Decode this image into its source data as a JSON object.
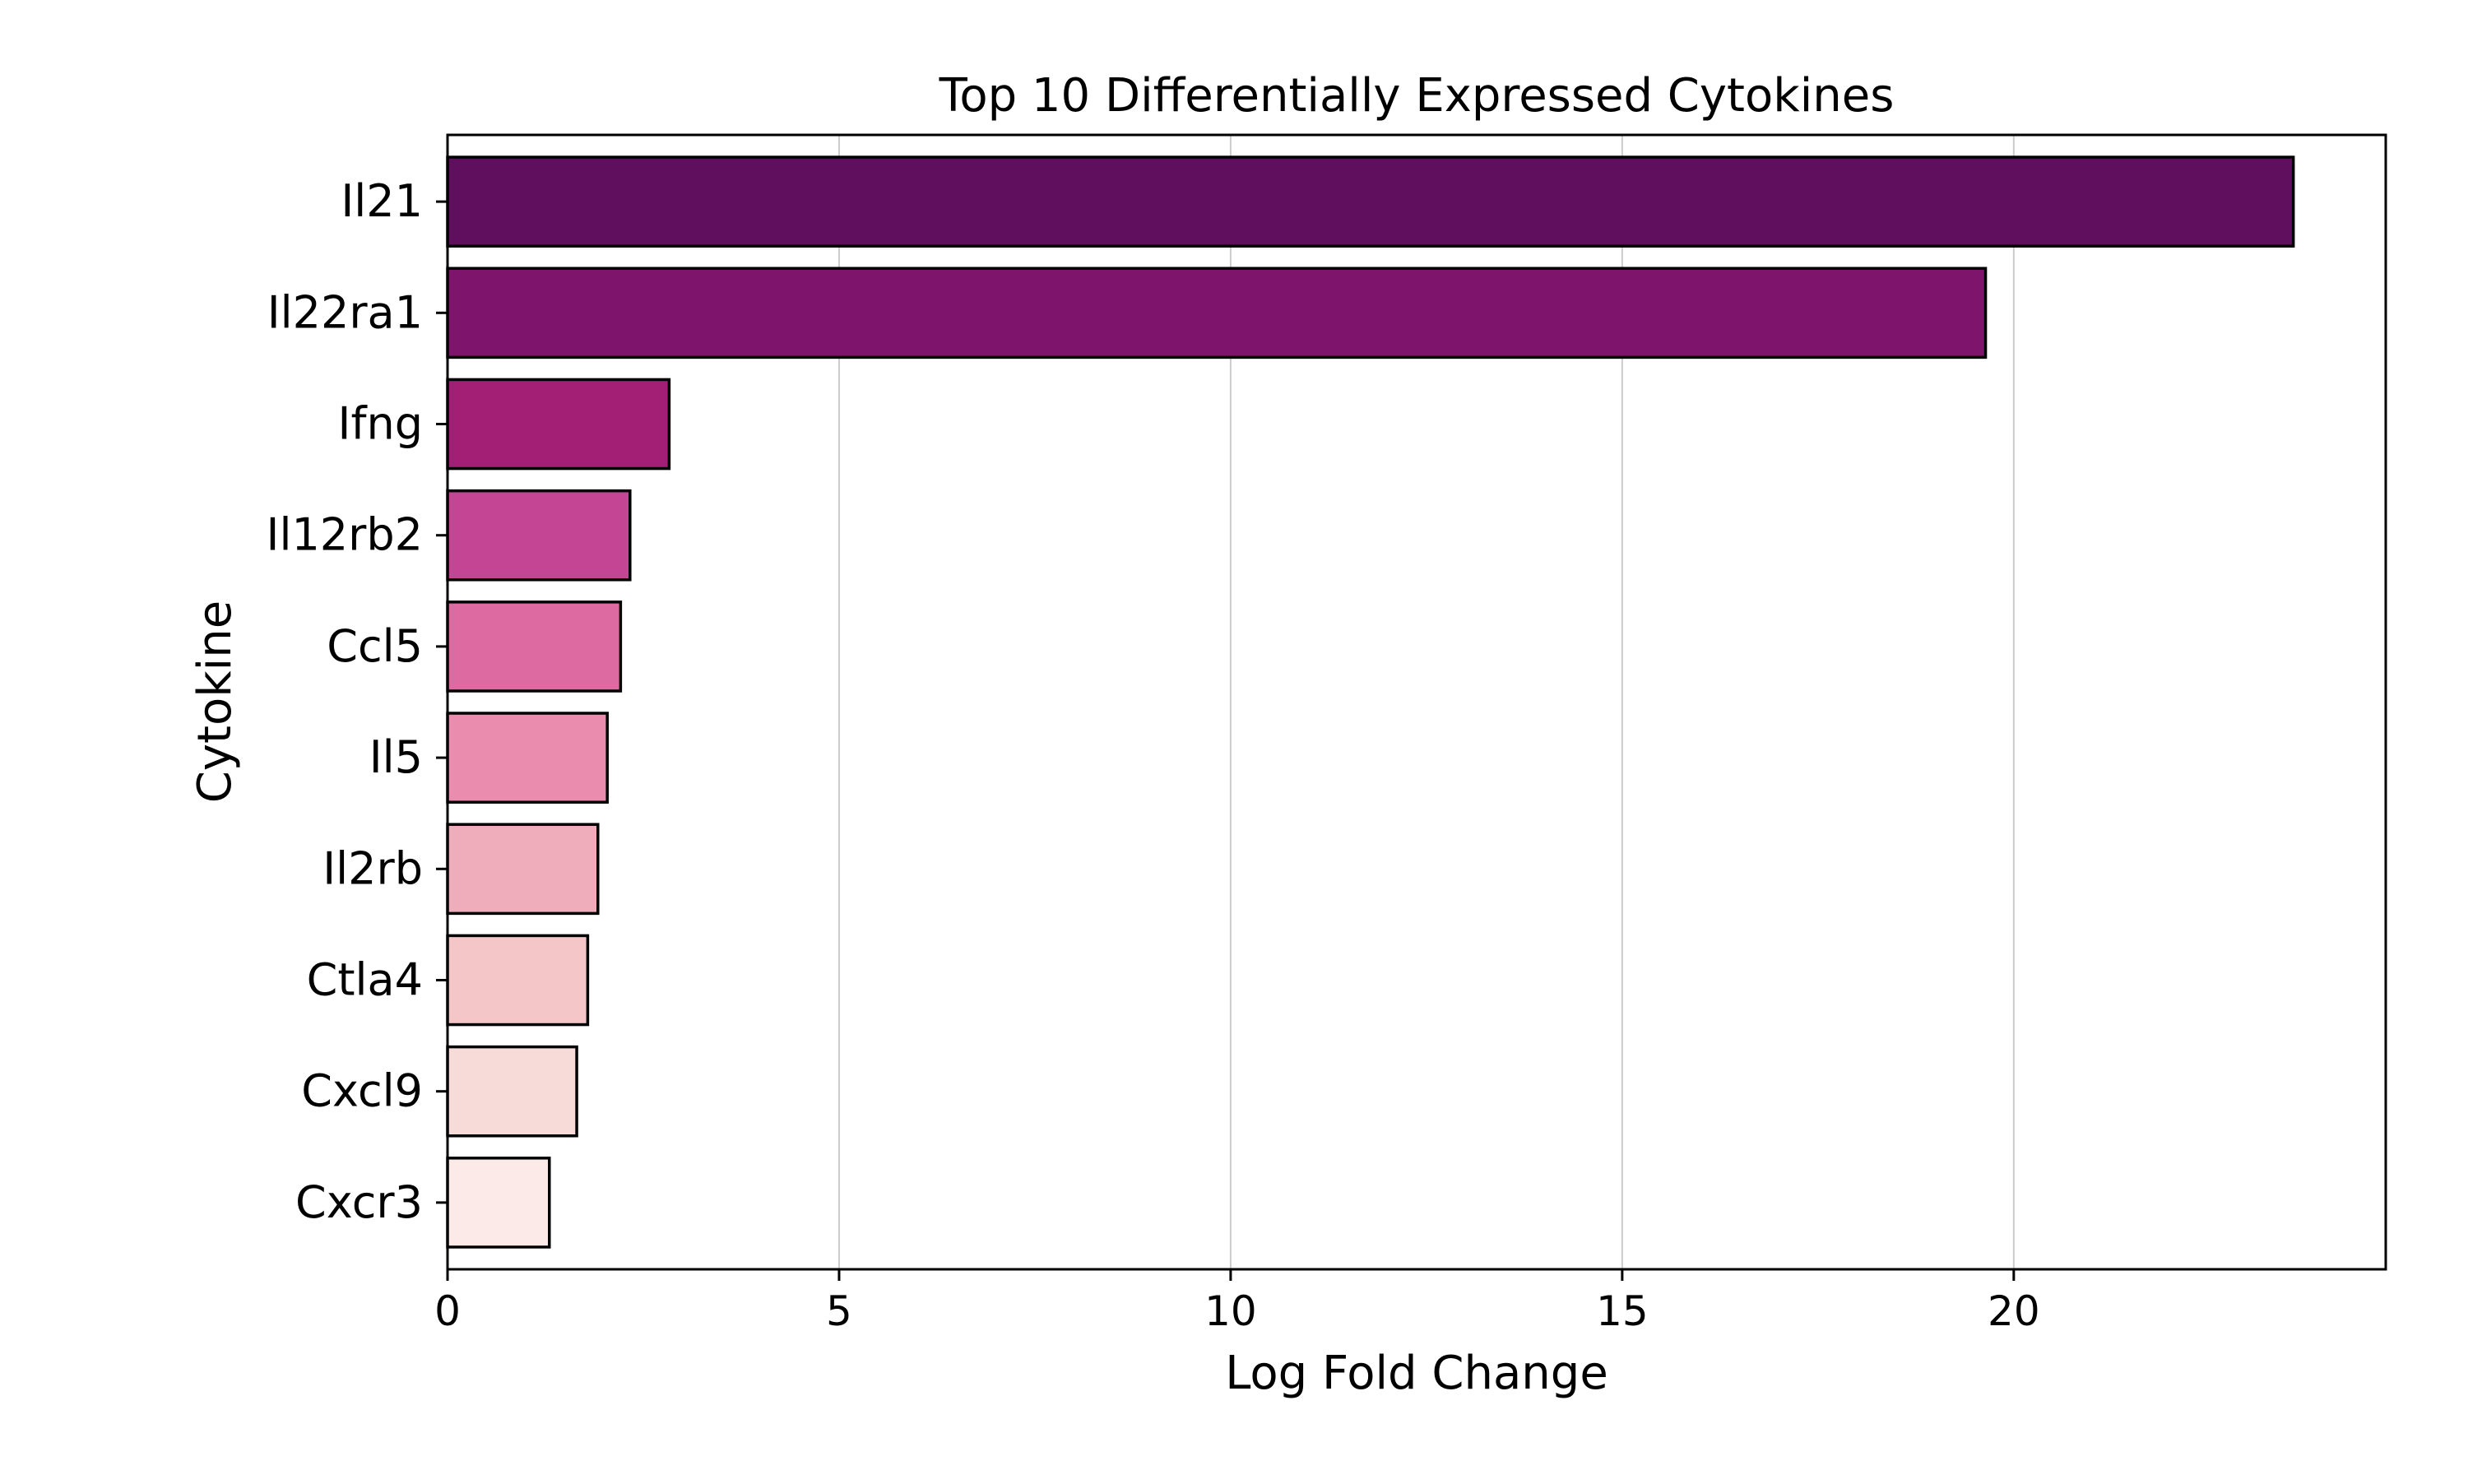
{
  "chart_data": {
    "type": "bar",
    "orientation": "horizontal",
    "title": "Top 10 Differentially Expressed Cytokines",
    "xlabel": "Log Fold Change",
    "ylabel": "Cytokine",
    "xlim": [
      0,
      24.75
    ],
    "x_ticks": [
      "0",
      "5",
      "10",
      "15",
      "20"
    ],
    "grid": "vertical",
    "categories": [
      "Il21",
      "Il22ra1",
      "Ifng",
      "Il12rb2",
      "Ccl5",
      "Il5",
      "Il2rb",
      "Ctla4",
      "Cxcl9",
      "Cxcr3"
    ],
    "values": [
      23.57,
      19.64,
      2.83,
      2.33,
      2.21,
      2.04,
      1.92,
      1.79,
      1.65,
      1.3
    ],
    "colors": [
      "#5f0f5e",
      "#7e146b",
      "#a31f76",
      "#c44593",
      "#dd6aa1",
      "#e98cad",
      "#efadbc",
      "#f5c6c7",
      "#f7dbd9",
      "#fbeae8"
    ]
  }
}
